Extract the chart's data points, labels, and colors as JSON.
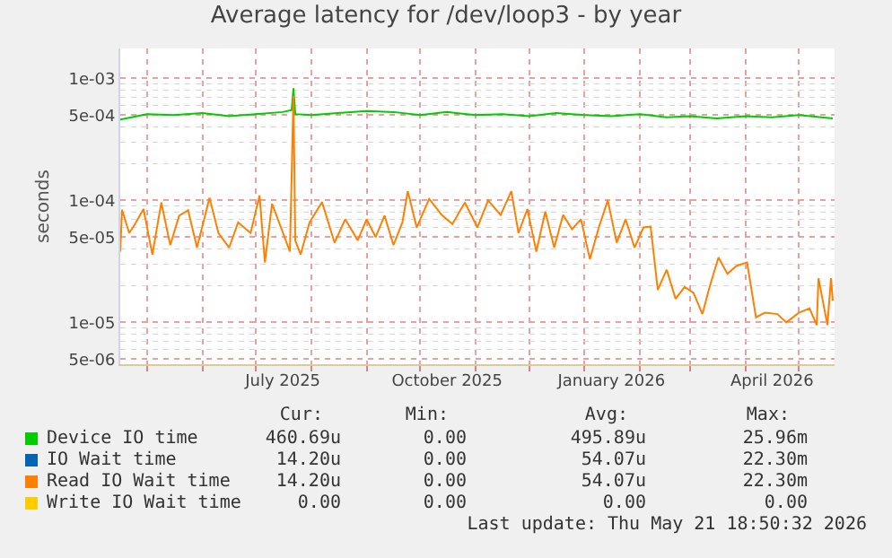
{
  "chart_data": {
    "type": "line",
    "title": "Average latency for /dev/loop3 - by year",
    "ylabel": "seconds",
    "log": true,
    "grid": true,
    "legend": "bottom",
    "xlim": [
      "2025-04-16",
      "2026-05-21"
    ],
    "xticks": [
      {
        "value": "2025-07-16",
        "label": "July 2025"
      },
      {
        "value": "2025-10-16",
        "label": "October 2025"
      },
      {
        "value": "2026-01-16",
        "label": "January 2026"
      },
      {
        "value": "2026-04-16",
        "label": "April 2026"
      }
    ],
    "ylim": [
      4.54e-06,
      0.00176
    ],
    "yticks": [
      {
        "value": 5e-06,
        "label": "5e-06"
      },
      {
        "value": 1e-05,
        "label": "1e-05"
      },
      {
        "value": 5e-05,
        "label": "5e-05"
      },
      {
        "value": 0.0001,
        "label": "1e-04"
      },
      {
        "value": 0.0005,
        "label": "5e-04"
      },
      {
        "value": 0.001,
        "label": "1e-03"
      }
    ],
    "series": [
      {
        "name": "Device IO time",
        "color": "#00cc00",
        "x": [
          "2025-04-16",
          "2025-05-01",
          "2025-05-16",
          "2025-06-01",
          "2025-06-16",
          "2025-07-01",
          "2025-07-16",
          "2025-07-21",
          "2025-07-22",
          "2025-07-23",
          "2025-08-01",
          "2025-08-16",
          "2025-09-01",
          "2025-09-16",
          "2025-10-01",
          "2025-10-16",
          "2025-11-01",
          "2025-11-16",
          "2025-12-01",
          "2025-12-16",
          "2026-01-01",
          "2026-01-16",
          "2026-02-01",
          "2026-02-16",
          "2026-03-01",
          "2026-03-16",
          "2026-04-01",
          "2026-04-16",
          "2026-05-01",
          "2026-05-20"
        ],
        "values": [
          0.00046,
          0.00051,
          0.0005,
          0.00052,
          0.00049,
          0.00051,
          0.00053,
          0.00055,
          0.00083,
          0.00051,
          0.0005,
          0.00052,
          0.00054,
          0.00053,
          0.0005,
          0.00053,
          0.0005,
          0.00051,
          0.00049,
          0.00052,
          0.0005,
          0.00049,
          0.00051,
          0.00048,
          0.00049,
          0.00047,
          0.00049,
          0.00048,
          0.0005,
          0.00047
        ]
      },
      {
        "name": "IO Wait time",
        "color": "#0066b3"
      },
      {
        "name": "Read IO Wait time",
        "color": "#ff8000",
        "x": [
          "2025-04-16",
          "2025-04-17",
          "2025-04-21",
          "2025-04-24",
          "2025-04-29",
          "2025-05-04",
          "2025-05-09",
          "2025-05-14",
          "2025-05-19",
          "2025-05-24",
          "2025-05-29",
          "2025-06-05",
          "2025-06-10",
          "2025-06-16",
          "2025-06-21",
          "2025-06-28",
          "2025-07-03",
          "2025-07-06",
          "2025-07-10",
          "2025-07-15",
          "2025-07-20",
          "2025-07-22",
          "2025-07-23",
          "2025-07-26",
          "2025-07-31",
          "2025-08-07",
          "2025-08-14",
          "2025-08-20",
          "2025-08-27",
          "2025-09-01",
          "2025-09-06",
          "2025-09-11",
          "2025-09-16",
          "2025-09-21",
          "2025-09-24",
          "2025-09-29",
          "2025-10-06",
          "2025-10-13",
          "2025-10-19",
          "2025-10-26",
          "2025-11-02",
          "2025-11-08",
          "2025-11-15",
          "2025-11-21",
          "2025-11-25",
          "2025-11-30",
          "2025-12-05",
          "2025-12-10",
          "2025-12-15",
          "2025-12-20",
          "2025-12-25",
          "2025-12-30",
          "2026-01-04",
          "2026-01-09",
          "2026-01-14",
          "2026-01-19",
          "2026-01-24",
          "2026-01-29",
          "2026-02-03",
          "2026-02-07",
          "2026-02-11",
          "2026-02-16",
          "2026-02-21",
          "2026-02-26",
          "2026-03-03",
          "2026-03-08",
          "2026-03-12",
          "2026-03-17",
          "2026-03-22",
          "2026-03-27",
          "2026-04-02",
          "2026-04-07",
          "2026-04-12",
          "2026-04-19",
          "2026-04-24",
          "2026-05-01",
          "2026-05-07",
          "2026-05-11",
          "2026-05-12",
          "2026-05-17",
          "2026-05-19",
          "2026-05-20"
        ],
        "values": [
          3.8e-05,
          8.4e-05,
          5.4e-05,
          6.3e-05,
          8.5e-05,
          3.6e-05,
          9.6e-05,
          4.3e-05,
          7.5e-05,
          8.3e-05,
          4.1e-05,
          0.000105,
          5.4e-05,
          4.1e-05,
          6.6e-05,
          5.4e-05,
          0.00011,
          3.1e-05,
          9.4e-05,
          6e-05,
          3.8e-05,
          0.00072,
          4.7e-05,
          3.6e-05,
          6.6e-05,
          9.7e-05,
          4.5e-05,
          7e-05,
          4.7e-05,
          7e-05,
          5e-05,
          7.5e-05,
          4.3e-05,
          6.6e-05,
          0.000119,
          6e-05,
          0.000103,
          7.6e-05,
          6.4e-05,
          9.6e-05,
          6e-05,
          0.0001,
          7.6e-05,
          0.000119,
          5.4e-05,
          8.5e-05,
          3.8e-05,
          8.1e-05,
          4.1e-05,
          7.6e-05,
          5.8e-05,
          7e-05,
          3.3e-05,
          6e-05,
          0.0001,
          4.5e-05,
          7e-05,
          4.1e-05,
          6e-05,
          6.1e-05,
          1.85e-05,
          2.7e-05,
          1.56e-05,
          1.95e-05,
          1.75e-05,
          1.17e-05,
          1.95e-05,
          3.4e-05,
          2.5e-05,
          2.9e-05,
          3.1e-05,
          1.1e-05,
          1.2e-05,
          1.17e-05,
          1e-05,
          1.2e-05,
          1.3e-05,
          9.5e-06,
          2.3e-05,
          9.5e-06,
          2.3e-05,
          1.5e-05
        ]
      },
      {
        "name": "Write IO Wait time",
        "color": "#ffcc00"
      }
    ],
    "annotations": [
      "Cur:",
      "Min:",
      "Avg:",
      "Max:",
      "460.69u",
      "0.00",
      "495.89u",
      "25.96m",
      "14.20u",
      "0.00",
      "54.07u",
      "22.30m",
      "14.20u",
      "0.00",
      "54.07u",
      "22.30m",
      "0.00",
      "0.00",
      "0.00",
      "0.00",
      "Last update: Thu May 21 18:50:32 2026"
    ]
  }
}
